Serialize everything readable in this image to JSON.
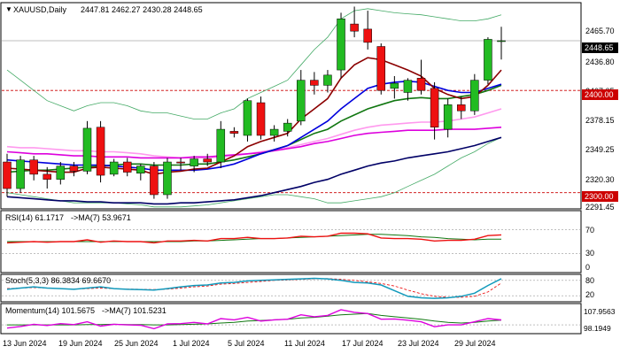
{
  "header": {
    "symbol": "XAUUSD,Daily",
    "ohlc": "2447.81 2462.27 2430.28 2448.65"
  },
  "price_axis": {
    "ticks": [
      "2465.70",
      "2436.80",
      "2407.05",
      "2378.15",
      "2349.25",
      "2320.30",
      "2291.45"
    ],
    "current_price": "2448.65",
    "level_2400": "2400.00",
    "level_2300": "2300.00"
  },
  "rsi": {
    "label": "RSI(14) 61.1717",
    "ma_label": "->MA(7) 53.9671",
    "ticks": [
      "70",
      "30",
      "0"
    ],
    "levels": [
      70,
      30
    ]
  },
  "stoch": {
    "label": "Stoch(5,3,3) 86.3834 69.6670",
    "ticks": [
      "80",
      "20"
    ]
  },
  "momentum": {
    "label": "Momentum(14) 101.5675",
    "ma_label": "->MA(7) 101.5231",
    "ticks": [
      "107.9563",
      "98.1949"
    ]
  },
  "date_axis": [
    "13 Jun 2024",
    "19 Jun 2024",
    "25 Jun 2024",
    "1 Jul 2024",
    "5 Jul 2024",
    "11 Jul 2024",
    "17 Jul 2024",
    "23 Jul 2024",
    "29 Jul 2024"
  ],
  "colors": {
    "bull": "#22bb22",
    "bear": "#ee1111",
    "ma_dark_red": "#8b0000",
    "ma_blue": "#0000dd",
    "ma_green": "#117711",
    "ma_navy": "#000066",
    "ma_magenta": "#dd00dd",
    "ma_pink": "#ff99ee",
    "bollinger": "#44aa66",
    "level_line": "#cc0000"
  },
  "chart_data": {
    "type": "candlestick",
    "title": "XAUUSD,Daily",
    "y_range": [
      2285,
      2485
    ],
    "candles": [
      {
        "o": 2330,
        "h": 2338,
        "l": 2296,
        "c": 2304
      },
      {
        "o": 2304,
        "h": 2336,
        "l": 2300,
        "c": 2332
      },
      {
        "o": 2332,
        "h": 2336,
        "l": 2312,
        "c": 2318
      },
      {
        "o": 2318,
        "h": 2325,
        "l": 2304,
        "c": 2313
      },
      {
        "o": 2313,
        "h": 2330,
        "l": 2308,
        "c": 2326
      },
      {
        "o": 2326,
        "h": 2330,
        "l": 2316,
        "c": 2321
      },
      {
        "o": 2321,
        "h": 2370,
        "l": 2318,
        "c": 2363
      },
      {
        "o": 2364,
        "h": 2370,
        "l": 2310,
        "c": 2317
      },
      {
        "o": 2318,
        "h": 2333,
        "l": 2316,
        "c": 2330
      },
      {
        "o": 2330,
        "h": 2334,
        "l": 2316,
        "c": 2320
      },
      {
        "o": 2319,
        "h": 2328,
        "l": 2312,
        "c": 2326
      },
      {
        "o": 2326,
        "h": 2330,
        "l": 2294,
        "c": 2298
      },
      {
        "o": 2298,
        "h": 2334,
        "l": 2294,
        "c": 2330
      },
      {
        "o": 2330,
        "h": 2334,
        "l": 2322,
        "c": 2329
      },
      {
        "o": 2326,
        "h": 2336,
        "l": 2320,
        "c": 2333
      },
      {
        "o": 2333,
        "h": 2338,
        "l": 2326,
        "c": 2330
      },
      {
        "o": 2330,
        "h": 2370,
        "l": 2324,
        "c": 2362
      },
      {
        "o": 2360,
        "h": 2364,
        "l": 2354,
        "c": 2358
      },
      {
        "o": 2356,
        "h": 2392,
        "l": 2350,
        "c": 2390
      },
      {
        "o": 2388,
        "h": 2394,
        "l": 2352,
        "c": 2356
      },
      {
        "o": 2356,
        "h": 2366,
        "l": 2350,
        "c": 2362
      },
      {
        "o": 2360,
        "h": 2372,
        "l": 2355,
        "c": 2368
      },
      {
        "o": 2370,
        "h": 2420,
        "l": 2366,
        "c": 2410
      },
      {
        "o": 2410,
        "h": 2418,
        "l": 2396,
        "c": 2405
      },
      {
        "o": 2405,
        "h": 2420,
        "l": 2398,
        "c": 2415
      },
      {
        "o": 2420,
        "h": 2476,
        "l": 2412,
        "c": 2470
      },
      {
        "o": 2465,
        "h": 2482,
        "l": 2452,
        "c": 2458
      },
      {
        "o": 2460,
        "h": 2478,
        "l": 2440,
        "c": 2447
      },
      {
        "o": 2443,
        "h": 2446,
        "l": 2396,
        "c": 2400
      },
      {
        "o": 2402,
        "h": 2414,
        "l": 2392,
        "c": 2407
      },
      {
        "o": 2398,
        "h": 2412,
        "l": 2390,
        "c": 2410
      },
      {
        "o": 2412,
        "h": 2430,
        "l": 2396,
        "c": 2400
      },
      {
        "o": 2402,
        "h": 2408,
        "l": 2352,
        "c": 2364
      },
      {
        "o": 2362,
        "h": 2392,
        "l": 2354,
        "c": 2386
      },
      {
        "o": 2386,
        "h": 2394,
        "l": 2372,
        "c": 2380
      },
      {
        "o": 2380,
        "h": 2416,
        "l": 2376,
        "c": 2410
      },
      {
        "o": 2410,
        "h": 2452,
        "l": 2406,
        "c": 2450
      },
      {
        "o": 2447.81,
        "h": 2462.27,
        "l": 2430.28,
        "c": 2448.65
      }
    ],
    "ma_dark_red": [
      2324,
      2323,
      2322,
      2321,
      2320,
      2320,
      2324,
      2325,
      2324,
      2323,
      2322,
      2318,
      2320,
      2321,
      2323,
      2324,
      2330,
      2336,
      2345,
      2350,
      2354,
      2358,
      2372,
      2382,
      2392,
      2412,
      2425,
      2432,
      2430,
      2425,
      2420,
      2414,
      2402,
      2396,
      2392,
      2394,
      2405,
      2420
    ],
    "ma_blue": [
      2332,
      2331,
      2330,
      2329,
      2328,
      2327,
      2327,
      2327,
      2326,
      2325,
      2324,
      2322,
      2322,
      2322,
      2322,
      2323,
      2325,
      2328,
      2333,
      2338,
      2342,
      2346,
      2354,
      2362,
      2370,
      2382,
      2392,
      2402,
      2406,
      2408,
      2409,
      2408,
      2404,
      2400,
      2398,
      2398,
      2402,
      2406
    ],
    "ma_green": [
      2320,
      2321,
      2322,
      2322,
      2323,
      2324,
      2325,
      2326,
      2327,
      2328,
      2328,
      2327,
      2327,
      2327,
      2328,
      2328,
      2330,
      2332,
      2335,
      2338,
      2342,
      2346,
      2352,
      2358,
      2362,
      2370,
      2376,
      2382,
      2386,
      2390,
      2392,
      2393,
      2392,
      2392,
      2394,
      2396,
      2400,
      2405
    ],
    "ma_navy": [
      2296,
      2295,
      2294,
      2293,
      2292,
      2292,
      2291,
      2291,
      2290,
      2290,
      2290,
      2289,
      2289,
      2290,
      2290,
      2291,
      2292,
      2293,
      2295,
      2297,
      2300,
      2303,
      2306,
      2310,
      2313,
      2318,
      2322,
      2326,
      2329,
      2331,
      2334,
      2336,
      2338,
      2340,
      2343,
      2346,
      2350,
      2354
    ],
    "ma_magenta": [
      2340,
      2339,
      2338,
      2338,
      2337,
      2336,
      2336,
      2335,
      2335,
      2335,
      2334,
      2334,
      2334,
      2334,
      2335,
      2335,
      2336,
      2337,
      2338,
      2339,
      2341,
      2343,
      2345,
      2348,
      2350,
      2353,
      2356,
      2358,
      2359,
      2360,
      2361,
      2361,
      2361,
      2362,
      2362,
      2362,
      2363,
      2364
    ],
    "ma_pink": [
      2345,
      2344,
      2344,
      2343,
      2342,
      2341,
      2341,
      2340,
      2340,
      2339,
      2338,
      2336,
      2335,
      2334,
      2334,
      2334,
      2335,
      2336,
      2338,
      2340,
      2342,
      2344,
      2347,
      2350,
      2353,
      2357,
      2361,
      2364,
      2366,
      2367,
      2368,
      2369,
      2369,
      2370,
      2372,
      2374,
      2378,
      2382
    ],
    "bb_upper": [
      2420,
      2410,
      2400,
      2390,
      2385,
      2380,
      2385,
      2388,
      2388,
      2385,
      2380,
      2378,
      2378,
      2375,
      2372,
      2372,
      2378,
      2382,
      2392,
      2398,
      2404,
      2410,
      2425,
      2440,
      2452,
      2470,
      2478,
      2480,
      2478,
      2476,
      2475,
      2474,
      2472,
      2470,
      2468,
      2468,
      2470,
      2474
    ],
    "bb_lower": [
      2300,
      2298,
      2296,
      2294,
      2292,
      2290,
      2290,
      2290,
      2290,
      2289,
      2288,
      2286,
      2286,
      2286,
      2287,
      2288,
      2290,
      2292,
      2294,
      2296,
      2298,
      2298,
      2296,
      2294,
      2290,
      2290,
      2292,
      2294,
      2296,
      2300,
      2306,
      2312,
      2318,
      2326,
      2334,
      2340,
      2348,
      2354
    ],
    "rsi": [
      48,
      49,
      50,
      49,
      50,
      50,
      53,
      49,
      51,
      50,
      50,
      48,
      51,
      51,
      52,
      51,
      55,
      55,
      57,
      55,
      55,
      56,
      59,
      58,
      59,
      64,
      64,
      63,
      56,
      55,
      55,
      54,
      51,
      52,
      52,
      54,
      60,
      61.17
    ],
    "rsi_ma": [
      50,
      50,
      50,
      50,
      50,
      50,
      50,
      50,
      50,
      50,
      50,
      50,
      50,
      50,
      51,
      51,
      52,
      53,
      54,
      55,
      55,
      56,
      57,
      58,
      59,
      60,
      61,
      62,
      62,
      61,
      60,
      58,
      57,
      55,
      54,
      53,
      54,
      53.97
    ],
    "stoch_k": [
      45,
      50,
      55,
      50,
      48,
      45,
      50,
      55,
      48,
      45,
      44,
      42,
      48,
      55,
      60,
      62,
      70,
      72,
      78,
      80,
      82,
      84,
      86,
      88,
      86,
      80,
      72,
      70,
      62,
      40,
      18,
      12,
      10,
      12,
      18,
      30,
      60,
      86.38
    ],
    "stoch_d": [
      48,
      50,
      52,
      50,
      48,
      46,
      48,
      50,
      48,
      46,
      45,
      44,
      46,
      50,
      55,
      58,
      65,
      68,
      72,
      76,
      80,
      82,
      84,
      86,
      87,
      84,
      80,
      74,
      68,
      58,
      42,
      28,
      18,
      14,
      14,
      18,
      35,
      69.67
    ],
    "momentum": [
      99.0,
      99.5,
      100.2,
      99.8,
      100.4,
      100.1,
      101.0,
      99.6,
      100.2,
      100.0,
      99.9,
      98.8,
      100.3,
      100.4,
      100.8,
      100.3,
      102.0,
      101.6,
      102.4,
      101.2,
      101.6,
      101.8,
      103.2,
      102.6,
      103.0,
      104.8,
      104.0,
      103.6,
      101.8,
      101.9,
      101.5,
      101.0,
      99.4,
      100.0,
      100.0,
      101.0,
      102.0,
      101.57
    ],
    "momentum_ma": [
      100.0,
      100.0,
      100.0,
      100.0,
      100.0,
      100.0,
      100.1,
      100.1,
      100.2,
      100.1,
      100.1,
      100.0,
      100.0,
      100.1,
      100.2,
      100.3,
      100.6,
      100.8,
      101.2,
      101.4,
      101.6,
      101.8,
      102.2,
      102.4,
      102.8,
      103.2,
      103.4,
      103.6,
      103.0,
      102.6,
      102.2,
      101.8,
      101.2,
      100.8,
      100.6,
      100.8,
      101.2,
      101.52
    ]
  }
}
